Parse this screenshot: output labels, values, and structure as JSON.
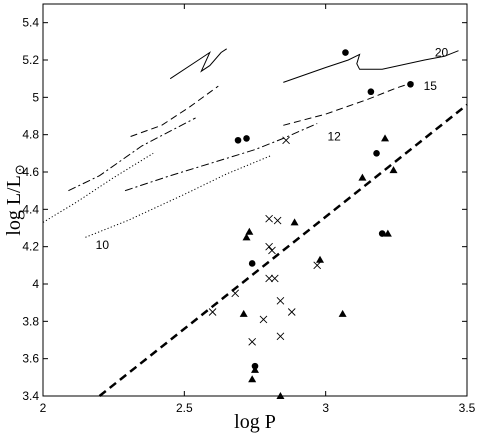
{
  "chart_data": {
    "type": "scatter",
    "xlabel": "log P",
    "ylabel_main": "log L/L",
    "ylabel_sub": "⊙",
    "xlim": [
      2,
      3.5
    ],
    "ylim": [
      3.4,
      5.5
    ],
    "xticks": [
      "2",
      "2.5",
      "3",
      "3.5"
    ],
    "yticks": [
      "3.4",
      "3.6",
      "3.8",
      "4",
      "4.2",
      "4.4",
      "4.6",
      "4.8",
      "5",
      "5.2",
      "5.4"
    ],
    "grid": false,
    "mass_labels": [
      {
        "text": "20",
        "x": 3.41,
        "y": 5.24
      },
      {
        "text": "15",
        "x": 3.37,
        "y": 5.06
      },
      {
        "text": "12",
        "x": 3.03,
        "y": 4.79
      },
      {
        "text": "10",
        "x": 2.21,
        "y": 4.21
      }
    ],
    "series": [
      {
        "marker": "filled-circle",
        "points": [
          [
            2.69,
            4.77
          ],
          [
            2.72,
            4.78
          ],
          [
            2.74,
            4.11
          ],
          [
            2.75,
            3.56
          ],
          [
            3.07,
            5.24
          ],
          [
            3.16,
            5.03
          ],
          [
            3.18,
            4.7
          ],
          [
            3.2,
            4.27
          ],
          [
            3.3,
            5.07
          ]
        ]
      },
      {
        "marker": "filled-triangle",
        "points": [
          [
            2.71,
            3.84
          ],
          [
            2.72,
            4.25
          ],
          [
            2.73,
            4.28
          ],
          [
            2.74,
            3.49
          ],
          [
            2.75,
            3.54
          ],
          [
            2.84,
            3.4
          ],
          [
            2.89,
            4.33
          ],
          [
            2.98,
            4.13
          ],
          [
            3.06,
            3.84
          ],
          [
            3.13,
            4.57
          ],
          [
            3.21,
            4.78
          ],
          [
            3.22,
            4.27
          ],
          [
            3.24,
            4.61
          ]
        ]
      },
      {
        "marker": "cross",
        "points": [
          [
            2.6,
            3.85
          ],
          [
            2.68,
            3.95
          ],
          [
            2.74,
            3.69
          ],
          [
            2.78,
            3.81
          ],
          [
            2.8,
            4.35
          ],
          [
            2.8,
            4.2
          ],
          [
            2.8,
            4.03
          ],
          [
            2.81,
            4.18
          ],
          [
            2.82,
            4.03
          ],
          [
            2.83,
            4.34
          ],
          [
            2.84,
            3.91
          ],
          [
            2.84,
            3.72
          ],
          [
            2.86,
            4.77
          ],
          [
            2.88,
            3.85
          ],
          [
            2.97,
            4.1
          ]
        ]
      }
    ],
    "trend_line": {
      "x": [
        2.2,
        3.5
      ],
      "y": [
        3.4,
        4.96
      ]
    },
    "tracks": [
      {
        "mass": "20",
        "style": "solid",
        "segments": [
          [
            [
              2.45,
              5.1
            ],
            [
              2.55,
              5.2
            ],
            [
              2.59,
              5.24
            ],
            [
              2.56,
              5.14
            ],
            [
              2.59,
              5.17
            ],
            [
              2.63,
              5.24
            ],
            [
              2.65,
              5.26
            ]
          ],
          [
            [
              2.85,
              5.08
            ],
            [
              3.0,
              5.16
            ],
            [
              3.08,
              5.2
            ],
            [
              3.12,
              5.23
            ],
            [
              3.11,
              5.18
            ],
            [
              3.12,
              5.15
            ],
            [
              3.2,
              5.15
            ],
            [
              3.35,
              5.2
            ],
            [
              3.42,
              5.22
            ],
            [
              3.47,
              5.25
            ]
          ]
        ]
      },
      {
        "mass": "15",
        "style": "dashed",
        "segments": [
          [
            [
              2.31,
              4.79
            ],
            [
              2.42,
              4.85
            ],
            [
              2.52,
              4.95
            ],
            [
              2.62,
              5.06
            ]
          ],
          [
            [
              2.85,
              4.85
            ],
            [
              3.0,
              4.91
            ],
            [
              3.15,
              4.99
            ],
            [
              3.25,
              5.05
            ],
            [
              3.31,
              5.08
            ]
          ]
        ]
      },
      {
        "mass": "12",
        "style": "dashdot",
        "segments": [
          [
            [
              2.09,
              4.5
            ],
            [
              2.2,
              4.58
            ],
            [
              2.35,
              4.74
            ],
            [
              2.54,
              4.89
            ]
          ],
          [
            [
              2.29,
              4.5
            ],
            [
              2.45,
              4.58
            ],
            [
              2.6,
              4.65
            ],
            [
              2.75,
              4.72
            ],
            [
              2.85,
              4.78
            ],
            [
              2.97,
              4.86
            ]
          ]
        ]
      },
      {
        "mass": "10",
        "style": "dotted",
        "segments": [
          [
            [
              2.0,
              4.33
            ],
            [
              2.12,
              4.44
            ],
            [
              2.25,
              4.57
            ],
            [
              2.39,
              4.7
            ]
          ],
          [
            [
              2.15,
              4.25
            ],
            [
              2.3,
              4.34
            ],
            [
              2.5,
              4.48
            ],
            [
              2.65,
              4.59
            ],
            [
              2.81,
              4.69
            ]
          ]
        ]
      }
    ]
  }
}
